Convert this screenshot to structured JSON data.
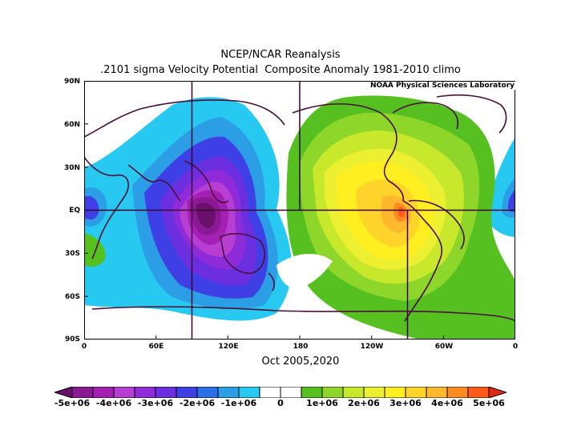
{
  "header": {
    "title_line1": "NCEP/NCAR Reanalysis",
    "title_line2": ".2101 sigma Velocity Potential  Composite Anomaly 1981-2010 climo"
  },
  "map": {
    "credit": "NOAA Physical Sciences Laboratory",
    "lat_labels": [
      "90N",
      "60N",
      "30N",
      "EQ",
      "30S",
      "60S",
      "90S"
    ],
    "lon_labels": [
      "0",
      "60E",
      "120E",
      "180",
      "120W",
      "60W",
      "0"
    ],
    "date_label": "Oct 2005,2020"
  },
  "colorbar": {
    "labels": [
      "-5e+06",
      "-4e+06",
      "-3e+06",
      "-2e+06",
      "-1e+06",
      "0",
      "1e+06",
      "2e+06",
      "3e+06",
      "4e+06",
      "5e+06"
    ],
    "colors": [
      "#6a0f6c",
      "#8a1a94",
      "#a41fb4",
      "#b83dd2",
      "#8f2bd8",
      "#6c2fe0",
      "#3f3fe6",
      "#2a6fe8",
      "#2c9ee6",
      "#27c9f0",
      "#ffffff",
      "#ffffff",
      "#55c020",
      "#8fd62a",
      "#c8e82c",
      "#ecf030",
      "#ffee20",
      "#ffd42a",
      "#ffb82c",
      "#ff8a22",
      "#ff5a1a",
      "#e02a14"
    ]
  }
}
